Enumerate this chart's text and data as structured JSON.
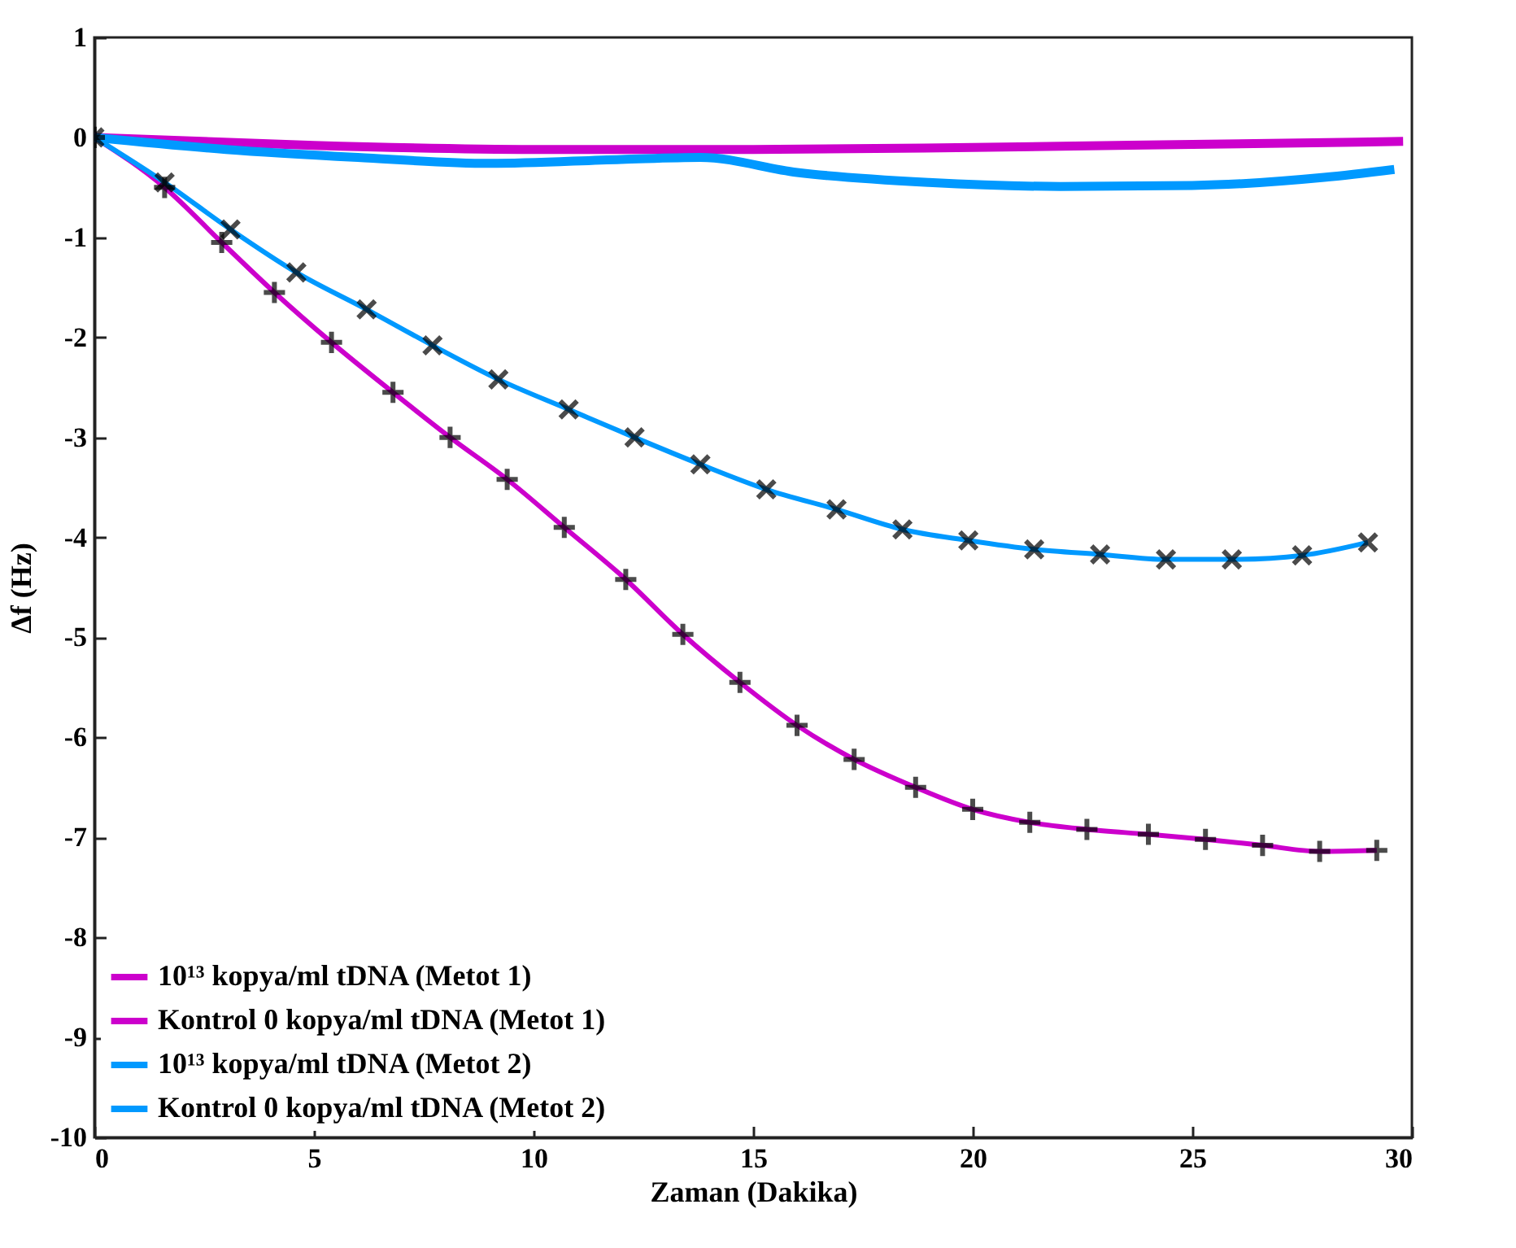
{
  "chart_data": {
    "type": "line",
    "xlabel": "Zaman (Dakika)",
    "ylabel": "Δf (Hz)",
    "xlim": [
      0,
      30
    ],
    "xticks": [
      0,
      5,
      10,
      15,
      20,
      25,
      30
    ],
    "ylim": [
      -10,
      1
    ],
    "yticks": [
      -10,
      -9,
      -8,
      -7,
      -6,
      -5,
      -4,
      -3,
      -2,
      -1,
      0,
      1
    ],
    "grid": false,
    "legend": "bottom left",
    "series": [
      {
        "name": "10¹³ kopya/ml tDNA (Metot 1)",
        "color": "#cc00cc",
        "marker": "cross",
        "x": [
          0,
          1.6,
          2.9,
          4.1,
          5.4,
          6.8,
          8.1,
          9.4,
          10.7,
          12.1,
          13.4,
          14.7,
          16.0,
          17.3,
          18.7,
          20.0,
          21.3,
          22.6,
          24.0,
          25.3,
          26.6,
          27.9,
          29.2
        ],
        "values": [
          0,
          -0.5,
          -1.05,
          -1.55,
          -2.05,
          -2.55,
          -3.0,
          -3.42,
          -3.9,
          -4.42,
          -4.97,
          -5.45,
          -5.88,
          -6.22,
          -6.5,
          -6.72,
          -6.85,
          -6.92,
          -6.97,
          -7.02,
          -7.08,
          -7.14,
          -7.13
        ]
      },
      {
        "name": "Kontrol 0 kopya/ml tDNA (Metot 1)",
        "color": "#cc00cc",
        "marker": "none",
        "x": [
          0,
          5,
          10,
          15,
          20,
          25,
          29.8
        ],
        "values": [
          0,
          -0.08,
          -0.12,
          -0.12,
          -0.1,
          -0.07,
          -0.04
        ]
      },
      {
        "name": "10¹³ kopya/ml tDNA (Metot 2)",
        "color": "#0099ff",
        "marker": "x",
        "x": [
          0,
          1.6,
          3.1,
          4.6,
          6.2,
          7.7,
          9.2,
          10.8,
          12.3,
          13.8,
          15.3,
          16.9,
          18.4,
          19.9,
          21.4,
          22.9,
          24.4,
          25.9,
          27.5,
          29.0
        ],
        "values": [
          0,
          -0.45,
          -0.92,
          -1.35,
          -1.72,
          -2.08,
          -2.42,
          -2.72,
          -3.0,
          -3.27,
          -3.52,
          -3.72,
          -3.92,
          -4.03,
          -4.12,
          -4.17,
          -4.22,
          -4.22,
          -4.18,
          -4.05
        ]
      },
      {
        "name": "Kontrol 0 kopya/ml tDNA (Metot 2)",
        "color": "#0099ff",
        "marker": "none",
        "x": [
          0,
          3,
          6,
          9,
          12,
          13.8,
          16,
          19,
          22,
          25,
          28,
          29.6
        ],
        "values": [
          0,
          -0.12,
          -0.2,
          -0.26,
          -0.22,
          -0.2,
          -0.35,
          -0.45,
          -0.49,
          -0.48,
          -0.4,
          -0.32
        ]
      }
    ]
  }
}
